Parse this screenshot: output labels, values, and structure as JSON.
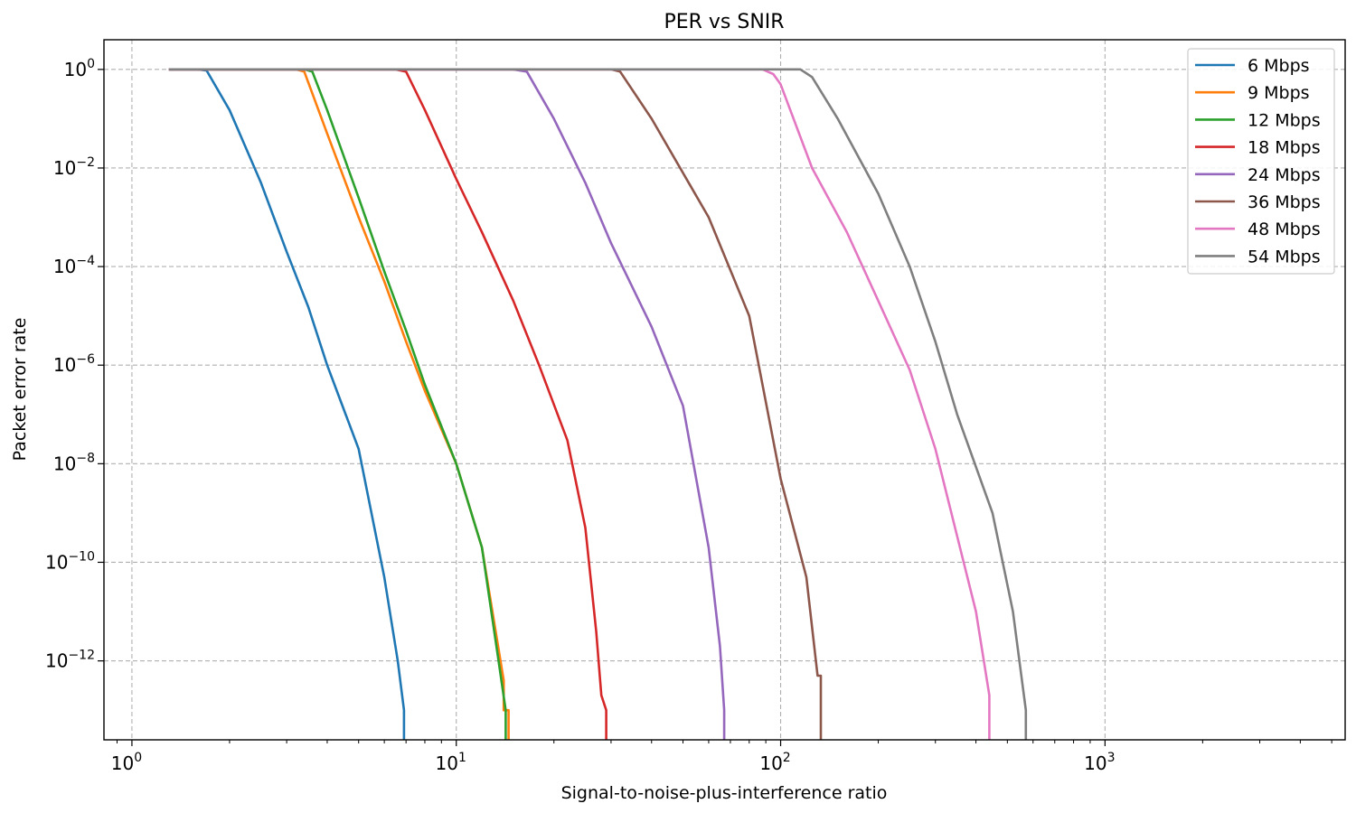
{
  "chart_data": {
    "type": "line",
    "title": "PER vs SNIR",
    "xlabel": "Signal-to-noise-plus-interference ratio",
    "ylabel": "Packet error rate",
    "x_scale": "log",
    "y_scale": "log",
    "xlim": [
      0.82,
      5500
    ],
    "ylim": [
      2.5e-14,
      4
    ],
    "x_ticks": [
      {
        "value": 1,
        "base": "10",
        "exp": "0"
      },
      {
        "value": 10,
        "base": "10",
        "exp": "1"
      },
      {
        "value": 100,
        "base": "10",
        "exp": "2"
      },
      {
        "value": 1000,
        "base": "10",
        "exp": "3"
      }
    ],
    "y_ticks": [
      {
        "value": 1,
        "base": "10",
        "exp": "0"
      },
      {
        "value": 0.01,
        "base": "10",
        "exp": "−2"
      },
      {
        "value": 0.0001,
        "base": "10",
        "exp": "−4"
      },
      {
        "value": 1e-06,
        "base": "10",
        "exp": "−6"
      },
      {
        "value": 1e-08,
        "base": "10",
        "exp": "−8"
      },
      {
        "value": 1e-10,
        "base": "10",
        "exp": "−10"
      },
      {
        "value": 1e-12,
        "base": "10",
        "exp": "−12"
      }
    ],
    "grid": true,
    "legend_position": "top-right",
    "series": [
      {
        "name": "6 Mbps",
        "color": "#1f77b4",
        "points": [
          [
            1.3,
            1
          ],
          [
            1.6,
            1
          ],
          [
            1.7,
            0.95
          ],
          [
            2.0,
            0.15
          ],
          [
            2.5,
            0.005
          ],
          [
            3.0,
            0.0002
          ],
          [
            3.5,
            1.5e-05
          ],
          [
            4.0,
            1e-06
          ],
          [
            5.0,
            2e-08
          ],
          [
            6.0,
            5e-11
          ],
          [
            6.6,
            1e-12
          ],
          [
            6.9,
            1e-13
          ],
          [
            6.9,
            2.5e-14
          ]
        ]
      },
      {
        "name": "9 Mbps",
        "color": "#ff7f0e",
        "points": [
          [
            1.3,
            1
          ],
          [
            3.2,
            1
          ],
          [
            3.4,
            0.9
          ],
          [
            4.0,
            0.05
          ],
          [
            5.0,
            0.001
          ],
          [
            6.0,
            5e-05
          ],
          [
            7.0,
            3e-06
          ],
          [
            8.0,
            3e-07
          ],
          [
            10.0,
            1e-08
          ],
          [
            12.0,
            2e-10
          ],
          [
            14.0,
            4e-13
          ],
          [
            14.0,
            1e-13
          ],
          [
            14.5,
            1e-13
          ],
          [
            14.5,
            2.5e-14
          ]
        ]
      },
      {
        "name": "12 Mbps",
        "color": "#2ca02c",
        "points": [
          [
            1.3,
            1
          ],
          [
            3.4,
            1
          ],
          [
            3.6,
            0.9
          ],
          [
            4.0,
            0.15
          ],
          [
            5.0,
            0.0025
          ],
          [
            6.0,
            8e-05
          ],
          [
            7.0,
            5e-06
          ],
          [
            8.0,
            4e-07
          ],
          [
            10.0,
            1e-08
          ],
          [
            12.0,
            2e-10
          ],
          [
            13.5,
            1e-12
          ],
          [
            14.2,
            1e-13
          ],
          [
            14.2,
            2.5e-14
          ]
        ]
      },
      {
        "name": "18 Mbps",
        "color": "#d62728",
        "points": [
          [
            1.3,
            1
          ],
          [
            6.5,
            1
          ],
          [
            7.0,
            0.9
          ],
          [
            8.0,
            0.15
          ],
          [
            10.0,
            0.006
          ],
          [
            12.0,
            0.0005
          ],
          [
            15.0,
            2e-05
          ],
          [
            18.0,
            1e-06
          ],
          [
            22.0,
            3e-08
          ],
          [
            25.0,
            5e-10
          ],
          [
            27.0,
            4e-12
          ],
          [
            28.0,
            2e-13
          ],
          [
            29.0,
            1e-13
          ],
          [
            29.0,
            2.5e-14
          ]
        ]
      },
      {
        "name": "24 Mbps",
        "color": "#9467bd",
        "points": [
          [
            1.3,
            1
          ],
          [
            15.0,
            1
          ],
          [
            16.5,
            0.9
          ],
          [
            20.0,
            0.1
          ],
          [
            25.0,
            0.005
          ],
          [
            30.0,
            0.0003
          ],
          [
            40.0,
            6e-06
          ],
          [
            50.0,
            1.5e-07
          ],
          [
            60.0,
            2e-10
          ],
          [
            65.0,
            2e-12
          ],
          [
            67.0,
            1e-13
          ],
          [
            67.0,
            2.5e-14
          ]
        ]
      },
      {
        "name": "36 Mbps",
        "color": "#8c564b",
        "points": [
          [
            1.3,
            1
          ],
          [
            30.0,
            1
          ],
          [
            32.0,
            0.9
          ],
          [
            40.0,
            0.1
          ],
          [
            60.0,
            0.001
          ],
          [
            80.0,
            1e-05
          ],
          [
            100.0,
            5e-09
          ],
          [
            120.0,
            5e-11
          ],
          [
            130.0,
            5e-13
          ],
          [
            133.0,
            5e-13
          ],
          [
            133.0,
            2.5e-14
          ]
        ]
      },
      {
        "name": "48 Mbps",
        "color": "#e377c2",
        "points": [
          [
            1.3,
            1
          ],
          [
            88.0,
            1
          ],
          [
            95.0,
            0.8
          ],
          [
            100.0,
            0.5
          ],
          [
            125.0,
            0.01
          ],
          [
            160.0,
            0.0005
          ],
          [
            200.0,
            2e-05
          ],
          [
            250.0,
            8e-07
          ],
          [
            300.0,
            2e-08
          ],
          [
            400.0,
            1e-11
          ],
          [
            440.0,
            2e-13
          ],
          [
            440.0,
            2.5e-14
          ]
        ]
      },
      {
        "name": "54 Mbps",
        "color": "#7f7f7f",
        "points": [
          [
            1.3,
            1
          ],
          [
            115.0,
            1
          ],
          [
            125.0,
            0.7
          ],
          [
            150.0,
            0.1
          ],
          [
            200.0,
            0.003
          ],
          [
            250.0,
            0.0001
          ],
          [
            300.0,
            3e-06
          ],
          [
            350.0,
            1e-07
          ],
          [
            450.0,
            1e-09
          ],
          [
            520.0,
            1e-11
          ],
          [
            570.0,
            1e-13
          ],
          [
            570.0,
            2.5e-14
          ]
        ]
      }
    ]
  }
}
